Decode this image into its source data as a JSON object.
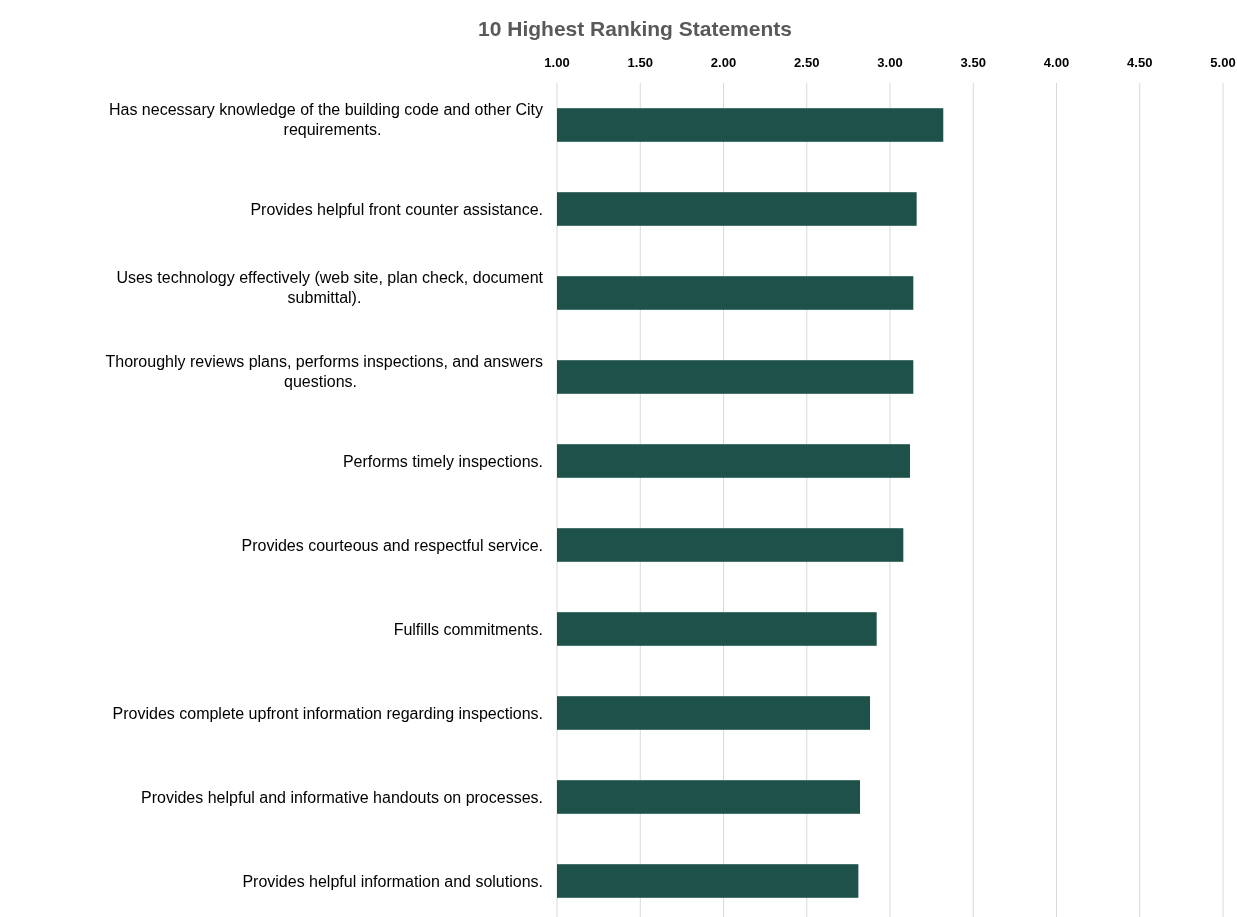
{
  "chart_data": {
    "type": "bar",
    "orientation": "horizontal",
    "title": "10 Highest Ranking Statements",
    "categories": [
      "Has necessary knowledge of the building code and other City requirements.",
      "Provides helpful front counter assistance.",
      "Uses technology effectively (web site, plan check, document submittal).",
      "Thoroughly reviews plans, performs inspections, and answers questions.",
      "Performs timely inspections.",
      "Provides courteous and respectful service.",
      "Fulfills commitments.",
      "Provides complete upfront information regarding inspections.",
      "Provides helpful and informative handouts on processes.",
      "Provides helpful information and solutions."
    ],
    "values": [
      3.32,
      3.16,
      3.14,
      3.14,
      3.12,
      3.08,
      2.92,
      2.88,
      2.82,
      2.81
    ],
    "color": "#1e5149",
    "xlim": [
      1,
      5
    ],
    "xticks": [
      {
        "value": 1,
        "label": "1.00"
      },
      {
        "value": 1.5,
        "label": "1.50"
      },
      {
        "value": 2,
        "label": "2.00"
      },
      {
        "value": 2.5,
        "label": "2.50"
      },
      {
        "value": 3,
        "label": "3.00"
      },
      {
        "value": 3.5,
        "label": "3.50"
      },
      {
        "value": 4,
        "label": "4.00"
      },
      {
        "value": 4.5,
        "label": "4.50"
      },
      {
        "value": 5,
        "label": "5.00"
      }
    ],
    "grid": "x"
  }
}
